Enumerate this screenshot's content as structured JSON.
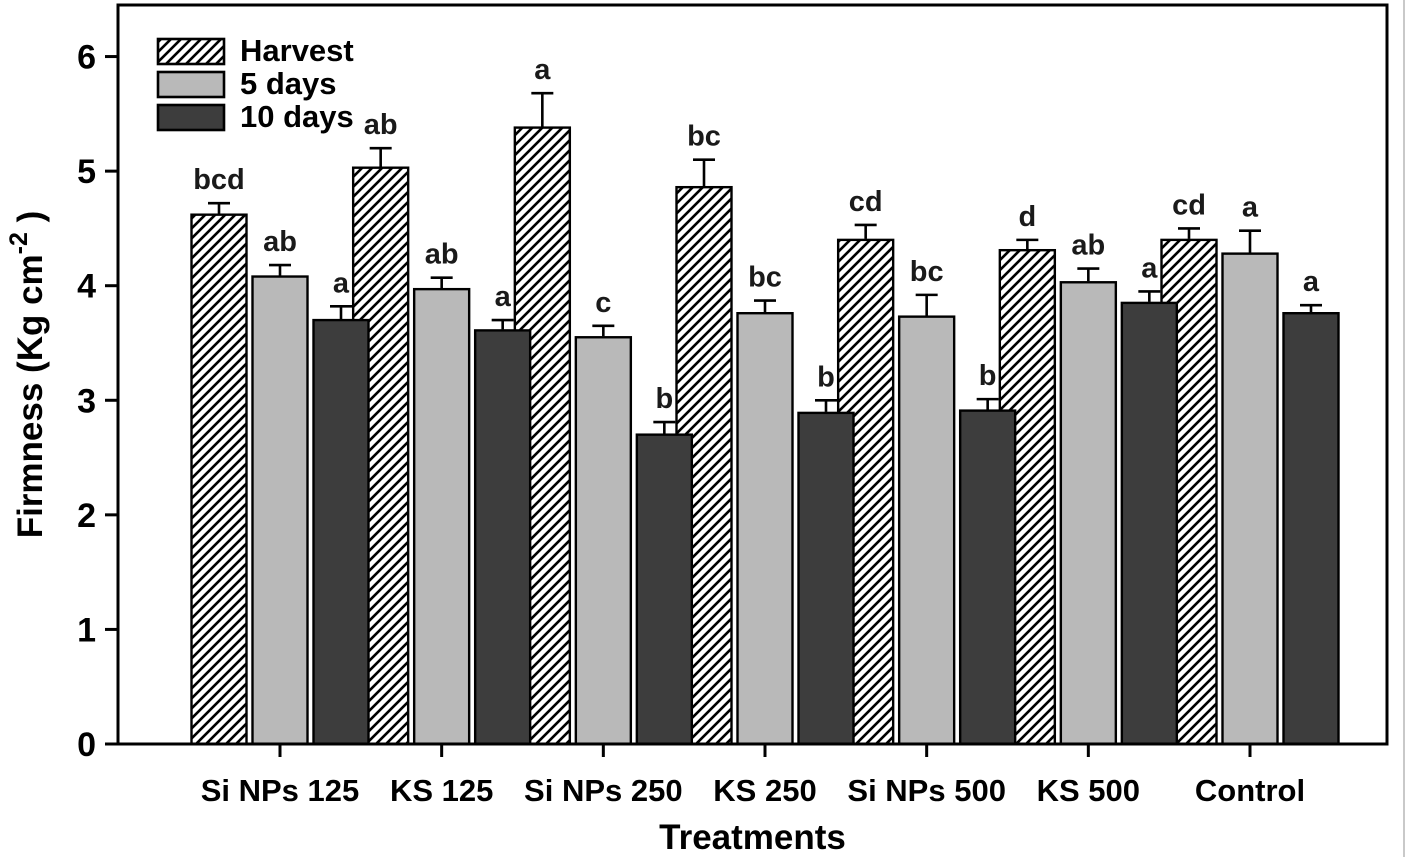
{
  "figure": {
    "background": "#ffffff",
    "frame_color": "#000000"
  },
  "chart_data": {
    "type": "bar",
    "title": "",
    "xlabel": "Treatments",
    "ylabel": {
      "pre": "Firmness (Kg cm",
      "sup": "-2",
      "post": " )"
    },
    "ylim": [
      0,
      6.45
    ],
    "yticks": [
      0,
      1,
      2,
      3,
      4,
      5,
      6
    ],
    "grid": false,
    "legend_position": "top-left-inside",
    "categories": [
      "Si NPs 125",
      "KS 125",
      "Si NPs 250",
      "KS 250",
      "Si NPs 500",
      "KS 500",
      "Control"
    ],
    "series": [
      {
        "name": "Harvest",
        "style": "hatched",
        "fill": "#ffffff",
        "values": [
          4.62,
          5.03,
          5.38,
          4.86,
          4.4,
          4.31,
          4.4
        ],
        "errors": [
          0.1,
          0.17,
          0.3,
          0.24,
          0.13,
          0.09,
          0.1
        ],
        "letters": [
          "bcd",
          "ab",
          "a",
          "bc",
          "cd",
          "d",
          "cd"
        ]
      },
      {
        "name": "5 days",
        "style": "solid",
        "fill": "#b9b9b9",
        "values": [
          4.08,
          3.97,
          3.55,
          3.76,
          3.73,
          4.03,
          4.28
        ],
        "errors": [
          0.1,
          0.1,
          0.1,
          0.11,
          0.19,
          0.12,
          0.2
        ],
        "letters": [
          "ab",
          "ab",
          "c",
          "bc",
          "bc",
          "ab",
          "a"
        ]
      },
      {
        "name": "10 days",
        "style": "solid",
        "fill": "#3d3d3d",
        "values": [
          3.7,
          3.61,
          2.7,
          2.89,
          2.91,
          3.85,
          3.76
        ],
        "errors": [
          0.12,
          0.09,
          0.11,
          0.11,
          0.1,
          0.1,
          0.07
        ],
        "letters": [
          "a",
          "a",
          "b",
          "b",
          "b",
          "a",
          "a"
        ]
      }
    ],
    "colors": {
      "bar_stroke": "#000000",
      "error_bar": "#000000",
      "letter_color": "#1a1a1a",
      "text_color": "#000000"
    }
  }
}
